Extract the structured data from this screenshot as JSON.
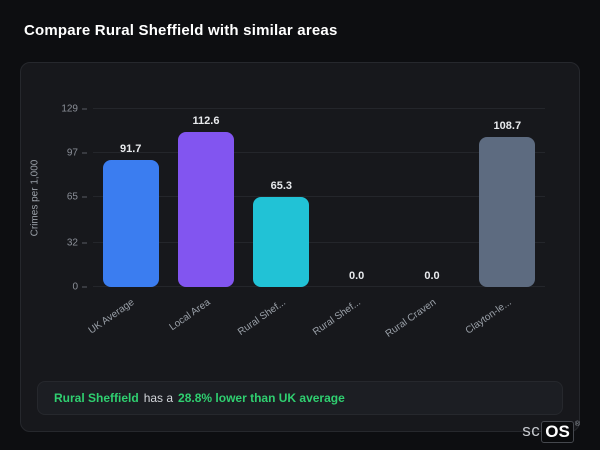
{
  "page": {
    "title": "Compare Rural Sheffield with similar areas"
  },
  "chart_data": {
    "type": "bar",
    "categories": [
      "UK Average",
      "Local Area",
      "Rural Shef...",
      "Rural Shef...",
      "Rural Craven",
      "Clayton-le..."
    ],
    "values": [
      91.7,
      112.6,
      65.3,
      0.0,
      0.0,
      108.7
    ],
    "value_labels": [
      "91.7",
      "112.6",
      "65.3",
      "0.0",
      "0.0",
      "108.7"
    ],
    "bar_colors": [
      "#3b7df0",
      "#8255f0",
      "#21c2d6",
      "#3b7df0",
      "#3b7df0",
      "#5d6b80"
    ],
    "title": "",
    "xlabel": "",
    "ylabel": "Crimes per 1,000",
    "yticks": [
      0,
      32,
      65,
      97,
      129
    ],
    "ylim": [
      0,
      129
    ],
    "grid": true,
    "legend_position": "none"
  },
  "annotation": {
    "area_name": "Rural Sheffield",
    "middle_text": "has a",
    "stat_text": "28.8% lower than UK average",
    "accent_color": "#2fcf70"
  },
  "watermark": {
    "prefix": "sc",
    "suffix": "OS",
    "registered": "®"
  }
}
